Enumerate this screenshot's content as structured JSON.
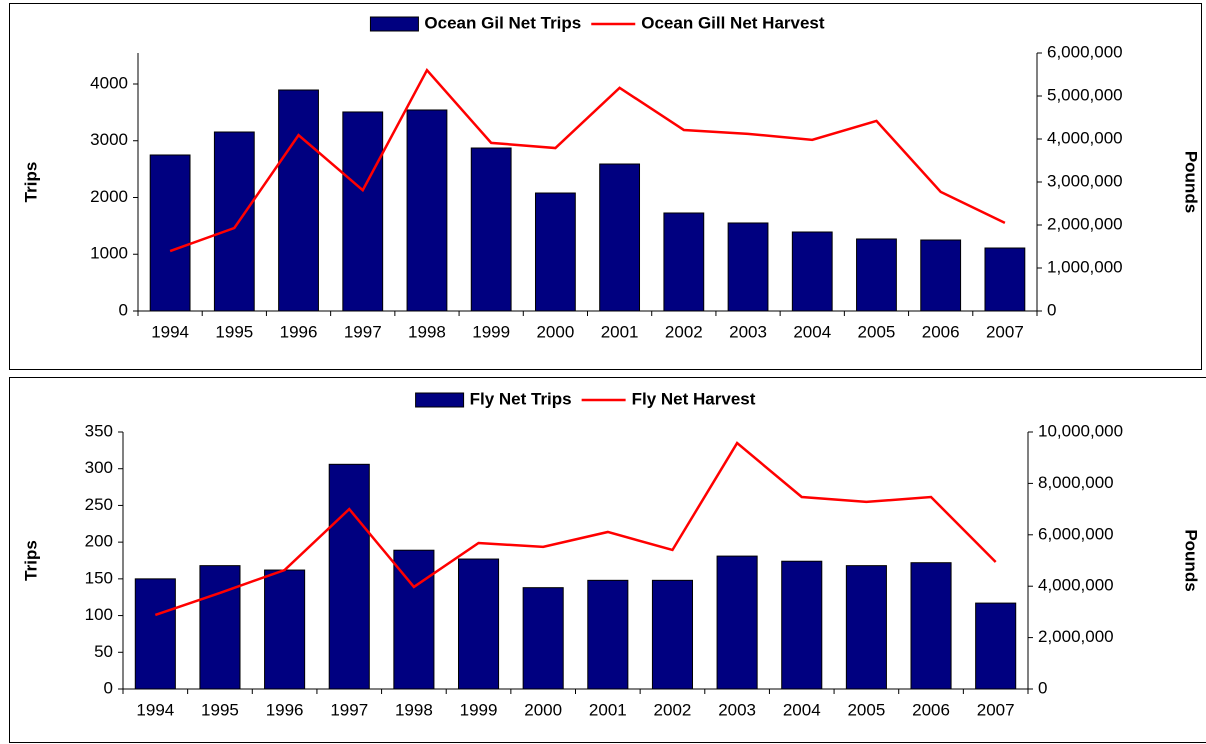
{
  "chart_data": [
    {
      "type": "bar-line",
      "categories": [
        "1994",
        "1995",
        "1996",
        "1997",
        "1998",
        "1999",
        "2000",
        "2001",
        "2002",
        "2003",
        "2004",
        "2005",
        "2006",
        "2007"
      ],
      "y_label": "Trips",
      "y2_label": "Pounds",
      "legend": "top",
      "series": [
        {
          "name": "Ocean Gil Net Trips",
          "color": "#000080",
          "type": "bar",
          "values": [
            2749,
            3154,
            3894,
            3507,
            3542,
            2872,
            2079,
            2590,
            1727,
            1551,
            1392,
            1269,
            1251,
            1110
          ]
        },
        {
          "name": "Ocean Gill Net Harvest",
          "color": "#ff0000",
          "type": "line",
          "axis": "y2",
          "values": [
            1395000,
            1930000,
            4090000,
            2810000,
            5600000,
            3910000,
            3790000,
            5190000,
            4210000,
            4120000,
            3980000,
            4420000,
            2770000,
            2050000
          ]
        }
      ],
      "ylim": [
        0,
        4546
      ],
      "yticks": [
        0,
        1000,
        2000,
        3000,
        4000
      ],
      "y2lim": [
        0,
        6000000
      ],
      "y2ticks": [
        0,
        {
          "value": 1000000,
          "label": "1,000,000"
        },
        {
          "value": 2000000,
          "label": "2,000,000"
        },
        {
          "value": 3000000,
          "label": "3,000,000"
        },
        {
          "value": 4000000,
          "label": "4,000,000"
        },
        {
          "value": 5000000,
          "label": "5,000,000"
        },
        {
          "value": 6000000,
          "label": "6,000,000"
        }
      ]
    },
    {
      "type": "bar-line",
      "categories": [
        "1994",
        "1995",
        "1996",
        "1997",
        "1998",
        "1999",
        "2000",
        "2001",
        "2002",
        "2003",
        "2004",
        "2005",
        "2006",
        "2007"
      ],
      "y_label": "Trips",
      "y2_label": "Pounds",
      "legend": "top",
      "series": [
        {
          "name": "Fly Net Trips",
          "color": "#000080",
          "type": "bar",
          "values": [
            150,
            168,
            162,
            306,
            189,
            177,
            138,
            148,
            148,
            181,
            174,
            168,
            172,
            117
          ]
        },
        {
          "name": "Fly Net Harvest",
          "color": "#ff0000",
          "type": "line",
          "axis": "y2",
          "values": [
            2880000,
            3740000,
            4630000,
            7000000,
            3970000,
            5680000,
            5530000,
            6110000,
            5410000,
            9570000,
            7470000,
            7280000,
            7470000,
            4940000
          ]
        }
      ],
      "ylim": [
        0,
        350
      ],
      "yticks": [
        0,
        50,
        100,
        150,
        200,
        250,
        300,
        350
      ],
      "y2lim": [
        0,
        10000000
      ],
      "y2ticks": [
        0,
        {
          "value": 2000000,
          "label": "2,000,000"
        },
        {
          "value": 4000000,
          "label": "4,000,000"
        },
        {
          "value": 6000000,
          "label": "6,000,000"
        },
        {
          "value": 8000000,
          "label": "8,000,000"
        },
        {
          "value": 10000000,
          "label": "10,000,000"
        }
      ]
    }
  ]
}
